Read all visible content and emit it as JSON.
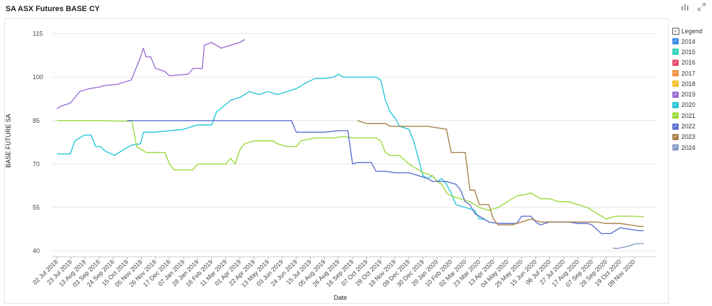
{
  "page": {
    "title": "SA ASX Futures BASE CY"
  },
  "toolbar": {
    "chart_icon": "bar-chart-icon",
    "expand_icon": "expand-icon"
  },
  "legend": {
    "title": "Legend",
    "items": [
      {
        "label": "2014",
        "color": "#3c8ce7"
      },
      {
        "label": "2015",
        "color": "#2ed1b4"
      },
      {
        "label": "2016",
        "color": "#e84a6a"
      },
      {
        "label": "2017",
        "color": "#f08d3c"
      },
      {
        "label": "2018",
        "color": "#f5c026"
      },
      {
        "label": "2019",
        "color": "#9b6fd3"
      },
      {
        "label": "2020",
        "color": "#25c6d6"
      },
      {
        "label": "2021",
        "color": "#9ad93a"
      },
      {
        "label": "2022",
        "color": "#5c6fd1"
      },
      {
        "label": "2023",
        "color": "#a8804b"
      },
      {
        "label": "2024",
        "color": "#8b9bc7"
      }
    ]
  },
  "chart_data": {
    "type": "line",
    "xlabel": "Date",
    "ylabel": "BASE FUTURE SA",
    "ylim": [
      38,
      118
    ],
    "yticks": [
      40,
      55,
      70,
      85,
      100,
      115
    ],
    "xlim": [
      "2018-06-25",
      "2020-12-12"
    ],
    "xticks": [
      "02 Jul 2018",
      "23 Jul 2018",
      "13 Aug 2018",
      "03 Sep 2018",
      "24 Sep 2018",
      "15 Oct 2018",
      "05 Nov 2018",
      "26 Nov 2018",
      "17 Dec 2018",
      "07 Jan 2019",
      "28 Jan 2019",
      "18 Feb 2019",
      "11 Mar 2019",
      "01 Apr 2019",
      "22 Apr 2019",
      "13 May 2019",
      "03 Jun 2019",
      "24 Jun 2019",
      "15 Jul 2019",
      "05 Aug 2019",
      "26 Aug 2019",
      "16 Sep 2019",
      "07 Oct 2019",
      "28 Oct 2019",
      "18 Nov 2019",
      "09 Dec 2019",
      "30 Dec 2019",
      "20 Jan 2020",
      "10 Feb 2020",
      "02 Mar 2020",
      "23 Mar 2020",
      "13 Apr 2020",
      "04 May 2020",
      "25 May 2020",
      "15 Jun 2020",
      "06 Jul 2020",
      "27 Jul 2020",
      "17 Aug 2020",
      "07 Sep 2020",
      "28 Sep 2020",
      "19 Oct 2020",
      "09 Nov 2020"
    ],
    "grid": "horizontal",
    "legend_position": "right",
    "series": [
      {
        "name": "2019",
        "color": "#9b6fd3",
        "points": [
          [
            "2018-07-02",
            89
          ],
          [
            "2018-07-08",
            90
          ],
          [
            "2018-07-22",
            91
          ],
          [
            "2018-07-29",
            93
          ],
          [
            "2018-08-05",
            95
          ],
          [
            "2018-08-19",
            96
          ],
          [
            "2018-09-02",
            96.5
          ],
          [
            "2018-09-09",
            97
          ],
          [
            "2018-09-30",
            97.5
          ],
          [
            "2018-10-07",
            98
          ],
          [
            "2018-10-21",
            99
          ],
          [
            "2018-10-28",
            103
          ],
          [
            "2018-11-04",
            107
          ],
          [
            "2018-11-08",
            110
          ],
          [
            "2018-11-12",
            107
          ],
          [
            "2018-11-19",
            107
          ],
          [
            "2018-11-26",
            103
          ],
          [
            "2018-12-10",
            102
          ],
          [
            "2018-12-17",
            100.5
          ],
          [
            "2019-01-14",
            101
          ],
          [
            "2019-01-21",
            103
          ],
          [
            "2019-02-04",
            103
          ],
          [
            "2019-02-07",
            111
          ],
          [
            "2019-02-18",
            112
          ],
          [
            "2019-03-04",
            110
          ],
          [
            "2019-03-18",
            111
          ],
          [
            "2019-04-01",
            112
          ],
          [
            "2019-04-08",
            113
          ]
        ]
      },
      {
        "name": "2020",
        "color": "#25c6d6",
        "points": [
          [
            "2018-07-02",
            73.5
          ],
          [
            "2018-07-22",
            73.5
          ],
          [
            "2018-07-29",
            78
          ],
          [
            "2018-08-05",
            79
          ],
          [
            "2018-08-12",
            80
          ],
          [
            "2018-08-22",
            80
          ],
          [
            "2018-08-29",
            76
          ],
          [
            "2018-09-05",
            76
          ],
          [
            "2018-09-12",
            74.5
          ],
          [
            "2018-09-26",
            73
          ],
          [
            "2018-10-10",
            75
          ],
          [
            "2018-10-21",
            76.5
          ],
          [
            "2018-11-04",
            77
          ],
          [
            "2018-11-08",
            81
          ],
          [
            "2018-11-26",
            81
          ],
          [
            "2018-12-17",
            81.5
          ],
          [
            "2019-01-07",
            82
          ],
          [
            "2019-01-28",
            83.5
          ],
          [
            "2019-02-18",
            83.5
          ],
          [
            "2019-02-25",
            88
          ],
          [
            "2019-03-08",
            90
          ],
          [
            "2019-03-18",
            92
          ],
          [
            "2019-04-01",
            93
          ],
          [
            "2019-04-15",
            95
          ],
          [
            "2019-04-29",
            94
          ],
          [
            "2019-05-13",
            95
          ],
          [
            "2019-05-27",
            94
          ],
          [
            "2019-06-10",
            95
          ],
          [
            "2019-06-24",
            96
          ],
          [
            "2019-07-08",
            98
          ],
          [
            "2019-07-22",
            99.5
          ],
          [
            "2019-08-05",
            99.5
          ],
          [
            "2019-08-19",
            100
          ],
          [
            "2019-08-26",
            101
          ],
          [
            "2019-09-02",
            100
          ],
          [
            "2019-09-23",
            100
          ],
          [
            "2019-10-07",
            100
          ],
          [
            "2019-10-21",
            100
          ],
          [
            "2019-10-28",
            99
          ],
          [
            "2019-11-04",
            92
          ],
          [
            "2019-11-11",
            88
          ],
          [
            "2019-11-18",
            86
          ],
          [
            "2019-11-25",
            83
          ],
          [
            "2019-12-09",
            82
          ],
          [
            "2019-12-16",
            78
          ],
          [
            "2019-12-23",
            72
          ],
          [
            "2019-12-30",
            66
          ],
          [
            "2020-01-06",
            65
          ],
          [
            "2020-01-13",
            66
          ],
          [
            "2020-01-20",
            64
          ],
          [
            "2020-01-27",
            65
          ],
          [
            "2020-02-03",
            63
          ],
          [
            "2020-02-10",
            60
          ],
          [
            "2020-02-17",
            56
          ],
          [
            "2020-03-02",
            55
          ],
          [
            "2020-03-16",
            54
          ],
          [
            "2020-03-23",
            51
          ],
          [
            "2020-04-01",
            51
          ]
        ]
      },
      {
        "name": "2021",
        "color": "#9ad93a",
        "points": [
          [
            "2018-07-02",
            85
          ],
          [
            "2018-09-10",
            85
          ],
          [
            "2018-10-01",
            84.8
          ],
          [
            "2018-10-22",
            84.8
          ],
          [
            "2018-10-29",
            76
          ],
          [
            "2018-11-05",
            75
          ],
          [
            "2018-11-12",
            74
          ],
          [
            "2018-12-10",
            74
          ],
          [
            "2018-12-17",
            70
          ],
          [
            "2018-12-24",
            68
          ],
          [
            "2019-01-21",
            68
          ],
          [
            "2019-01-28",
            70
          ],
          [
            "2019-03-11",
            70
          ],
          [
            "2019-03-18",
            72
          ],
          [
            "2019-03-25",
            70
          ],
          [
            "2019-04-01",
            75
          ],
          [
            "2019-04-08",
            77
          ],
          [
            "2019-04-22",
            78
          ],
          [
            "2019-05-20",
            78
          ],
          [
            "2019-05-27",
            77
          ],
          [
            "2019-06-10",
            76
          ],
          [
            "2019-06-24",
            76
          ],
          [
            "2019-07-01",
            78
          ],
          [
            "2019-07-22",
            79
          ],
          [
            "2019-08-05",
            79
          ],
          [
            "2019-08-19",
            79
          ],
          [
            "2019-09-02",
            79.5
          ],
          [
            "2019-09-16",
            79
          ],
          [
            "2019-10-07",
            79
          ],
          [
            "2019-10-21",
            79
          ],
          [
            "2019-10-28",
            78
          ],
          [
            "2019-11-04",
            74
          ],
          [
            "2019-11-11",
            73
          ],
          [
            "2019-11-25",
            73
          ],
          [
            "2019-12-09",
            70
          ],
          [
            "2019-12-16",
            69
          ],
          [
            "2019-12-30",
            67
          ],
          [
            "2020-01-13",
            66
          ],
          [
            "2020-01-20",
            64
          ],
          [
            "2020-01-27",
            63
          ],
          [
            "2020-02-03",
            60
          ],
          [
            "2020-02-10",
            59
          ],
          [
            "2020-02-24",
            58
          ],
          [
            "2020-03-09",
            57
          ],
          [
            "2020-03-23",
            55
          ],
          [
            "2020-04-06",
            54
          ],
          [
            "2020-04-20",
            55
          ],
          [
            "2020-05-04",
            57
          ],
          [
            "2020-05-18",
            59
          ],
          [
            "2020-06-01",
            59.5
          ],
          [
            "2020-06-08",
            60
          ],
          [
            "2020-06-22",
            58
          ],
          [
            "2020-07-06",
            58
          ],
          [
            "2020-07-20",
            57
          ],
          [
            "2020-08-03",
            57
          ],
          [
            "2020-08-17",
            56
          ],
          [
            "2020-08-31",
            55
          ],
          [
            "2020-09-14",
            53
          ],
          [
            "2020-09-28",
            51
          ],
          [
            "2020-10-12",
            52
          ],
          [
            "2020-10-26",
            52
          ],
          [
            "2020-11-09",
            52
          ],
          [
            "2020-11-23",
            51.8
          ]
        ]
      },
      {
        "name": "2022",
        "color": "#5c6fd1",
        "points": [
          [
            "2018-10-15",
            85
          ],
          [
            "2019-01-07",
            85
          ],
          [
            "2019-04-01",
            85
          ],
          [
            "2019-06-17",
            85
          ],
          [
            "2019-06-24",
            81
          ],
          [
            "2019-08-05",
            81
          ],
          [
            "2019-08-26",
            81.5
          ],
          [
            "2019-09-09",
            81.5
          ],
          [
            "2019-09-16",
            70
          ],
          [
            "2019-09-23",
            70.5
          ],
          [
            "2019-10-14",
            70.5
          ],
          [
            "2019-10-21",
            67.5
          ],
          [
            "2019-11-04",
            67.5
          ],
          [
            "2019-11-18",
            67
          ],
          [
            "2019-12-09",
            67
          ],
          [
            "2019-12-23",
            66
          ],
          [
            "2020-01-06",
            65
          ],
          [
            "2020-01-13",
            64
          ],
          [
            "2020-02-03",
            64
          ],
          [
            "2020-02-17",
            63
          ],
          [
            "2020-02-24",
            61
          ],
          [
            "2020-03-02",
            57
          ],
          [
            "2020-03-09",
            56
          ],
          [
            "2020-03-16",
            53
          ],
          [
            "2020-03-23",
            52
          ],
          [
            "2020-04-06",
            50
          ],
          [
            "2020-04-20",
            49.5
          ],
          [
            "2020-05-04",
            49.5
          ],
          [
            "2020-05-18",
            49.5
          ],
          [
            "2020-05-25",
            52
          ],
          [
            "2020-06-08",
            52
          ],
          [
            "2020-06-15",
            50
          ],
          [
            "2020-06-22",
            49
          ],
          [
            "2020-07-06",
            50
          ],
          [
            "2020-08-03",
            50
          ],
          [
            "2020-08-17",
            49.5
          ],
          [
            "2020-08-31",
            49.5
          ],
          [
            "2020-09-07",
            49
          ],
          [
            "2020-09-21",
            46
          ],
          [
            "2020-10-05",
            46
          ],
          [
            "2020-10-12",
            47
          ],
          [
            "2020-10-19",
            48
          ],
          [
            "2020-11-02",
            47.5
          ],
          [
            "2020-11-16",
            47
          ],
          [
            "2020-11-23",
            47
          ]
        ]
      },
      {
        "name": "2023",
        "color": "#a8804b",
        "points": [
          [
            "2019-09-23",
            85
          ],
          [
            "2019-10-07",
            84
          ],
          [
            "2019-11-04",
            84
          ],
          [
            "2019-11-11",
            83
          ],
          [
            "2019-12-16",
            83
          ],
          [
            "2020-01-06",
            83
          ],
          [
            "2020-01-20",
            82.5
          ],
          [
            "2020-02-03",
            82
          ],
          [
            "2020-02-10",
            74
          ],
          [
            "2020-02-24",
            74
          ],
          [
            "2020-03-02",
            74
          ],
          [
            "2020-03-09",
            61
          ],
          [
            "2020-03-16",
            61
          ],
          [
            "2020-03-23",
            56
          ],
          [
            "2020-04-06",
            56
          ],
          [
            "2020-04-13",
            51
          ],
          [
            "2020-04-20",
            49
          ],
          [
            "2020-05-11",
            49
          ],
          [
            "2020-05-25",
            50
          ],
          [
            "2020-06-08",
            51
          ],
          [
            "2020-06-22",
            50
          ],
          [
            "2020-07-06",
            50
          ],
          [
            "2020-08-03",
            50
          ],
          [
            "2020-08-31",
            50
          ],
          [
            "2020-09-14",
            50
          ],
          [
            "2020-09-28",
            49.5
          ],
          [
            "2020-10-19",
            49.5
          ],
          [
            "2020-11-02",
            49
          ],
          [
            "2020-11-16",
            48.5
          ],
          [
            "2020-11-23",
            48.5
          ]
        ]
      },
      {
        "name": "2024",
        "color": "#8b9bc7",
        "points": [
          [
            "2020-10-08",
            41
          ],
          [
            "2020-10-15",
            40.8
          ],
          [
            "2020-10-22",
            41.2
          ],
          [
            "2020-10-29",
            41.5
          ],
          [
            "2020-11-05",
            42
          ],
          [
            "2020-11-12",
            42.5
          ],
          [
            "2020-11-23",
            42.5
          ]
        ]
      }
    ]
  }
}
